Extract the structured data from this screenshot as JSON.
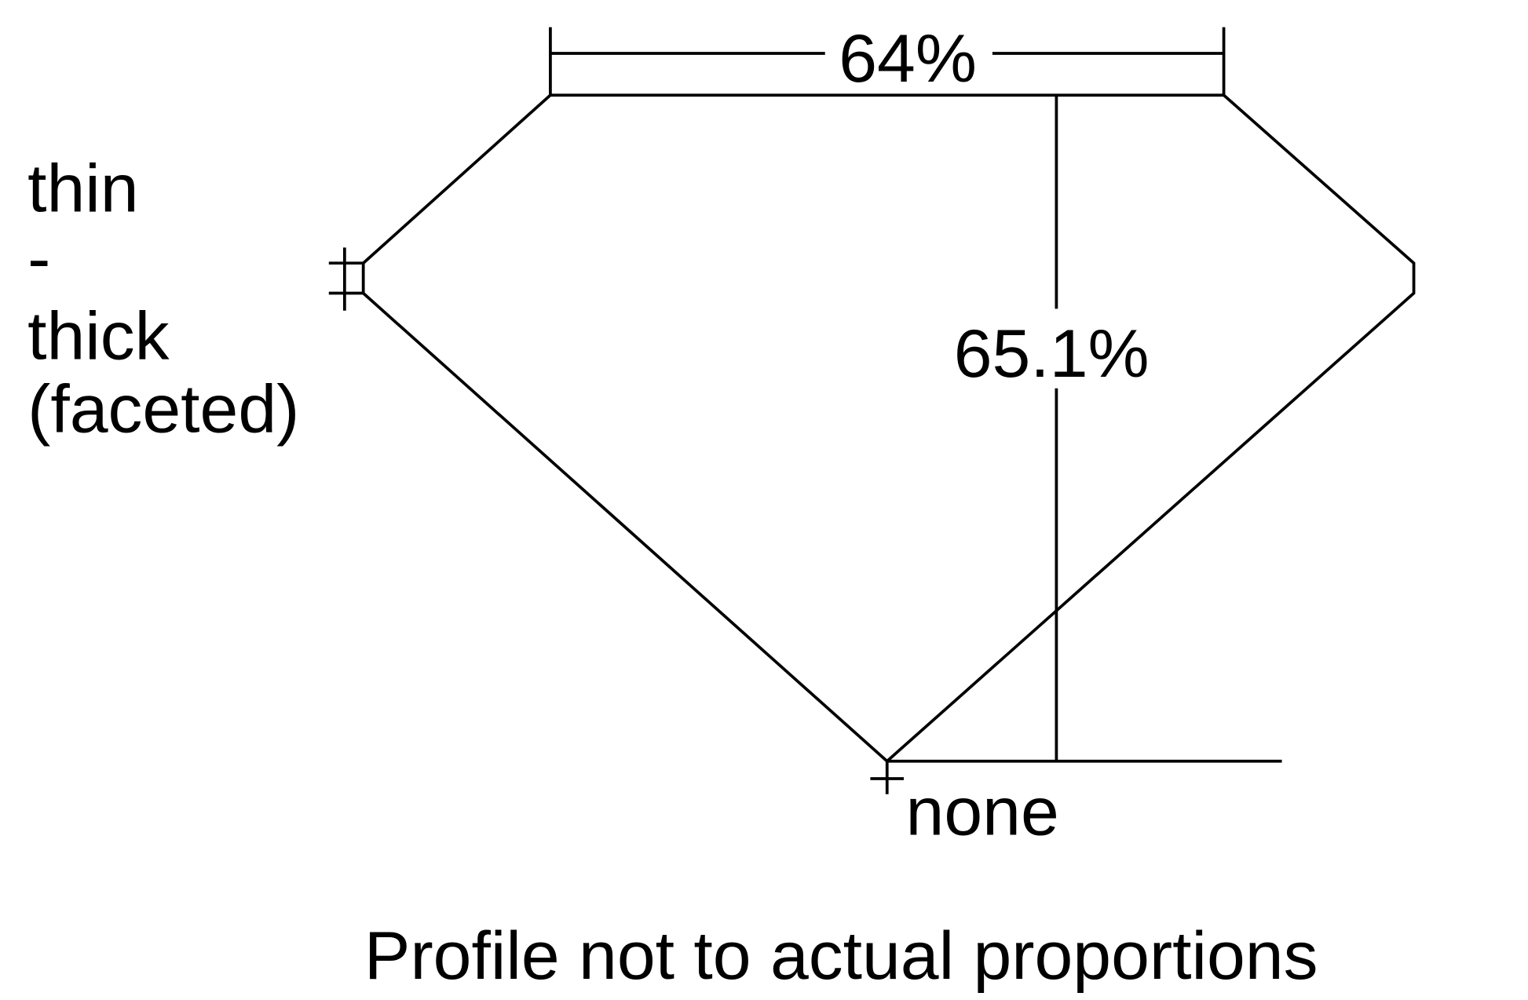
{
  "diagram": {
    "table_label": "64%",
    "depth_label": "65.1%",
    "girdle_label_lines": [
      "thin",
      "-",
      "thick",
      "(faceted)"
    ],
    "culet_label": "none",
    "footnote": "Profile not to actual proportions",
    "line_color": "#000000",
    "background": "#ffffff"
  }
}
